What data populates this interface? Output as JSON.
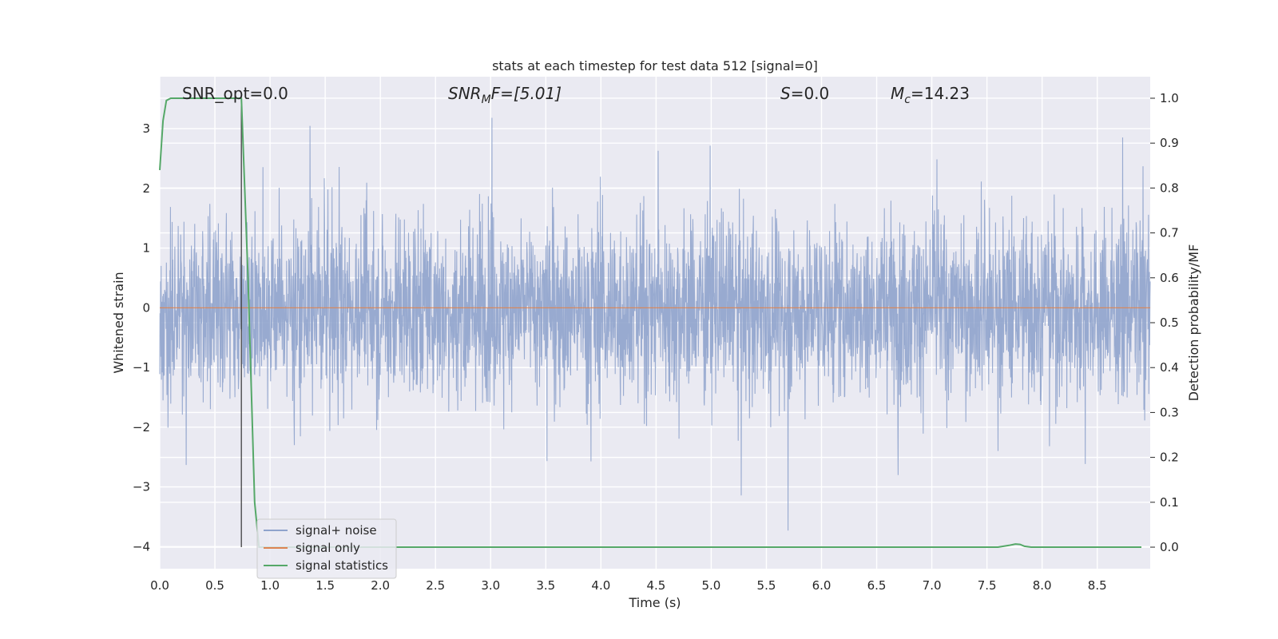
{
  "chart_data": {
    "type": "line",
    "title": "stats at each timestep for test data 512 [signal=0]",
    "xlabel": "Time (s)",
    "ylabel_left": "Whitened strain",
    "ylabel_right": "Detection probability/MF",
    "xlim": [
      0.0,
      8.98
    ],
    "ylim_left": [
      -4.37,
      3.87
    ],
    "ylim_right": [
      -0.048,
      1.048
    ],
    "x_ticks": [
      "0.0",
      "0.5",
      "1.0",
      "1.5",
      "2.0",
      "2.5",
      "3.0",
      "3.5",
      "4.0",
      "4.5",
      "5.0",
      "5.5",
      "6.0",
      "6.5",
      "7.0",
      "7.5",
      "8.0",
      "8.5"
    ],
    "y_left_ticks": [
      "3",
      "2",
      "1",
      "0",
      "−1",
      "−2",
      "−3",
      "−4"
    ],
    "y_right_ticks": [
      "1.0",
      "0.9",
      "0.8",
      "0.7",
      "0.6",
      "0.5",
      "0.4",
      "0.3",
      "0.2",
      "0.1",
      "0.0"
    ],
    "grid": true,
    "legend_position": "lower-left",
    "annotations": {
      "snr_opt": "SNR_opt=0.0",
      "snr_mf_symbol": "SNR",
      "snr_mf_sub": "M",
      "snr_mf_rest": "F=[5.01]",
      "s_symbol": "S",
      "s_rest": "=0.0",
      "mc_symbol": "M",
      "mc_sub": "c",
      "mc_rest": "=14.23"
    },
    "marker_line_x": 0.74,
    "series": [
      {
        "name": "signal+ noise",
        "color": "#8fa3cc",
        "description_values": {
          "approx_peak_max": 3.3,
          "approx_peak_min": -4.0,
          "typical_abs": 1.2
        }
      },
      {
        "name": "signal only",
        "color": "#dd8452",
        "values_constant": 0.0
      },
      {
        "name": "signal statistics",
        "color": "#55a868",
        "x": [
          0.0,
          0.03,
          0.06,
          0.1,
          0.3,
          0.5,
          0.7,
          0.74,
          0.8,
          0.86,
          0.9,
          1.0,
          2.0,
          3.0,
          4.0,
          5.0,
          6.0,
          7.0,
          7.6,
          7.7,
          7.76,
          7.8,
          7.84,
          7.9,
          8.0,
          8.3,
          8.5,
          8.9
        ],
        "y": [
          0.84,
          0.95,
          0.995,
          1.0,
          1.0,
          1.0,
          1.0,
          1.0,
          0.6,
          0.1,
          0.0,
          0.0,
          0.0,
          0.0,
          0.0,
          0.0,
          0.0,
          0.0,
          0.0,
          0.004,
          0.007,
          0.006,
          0.002,
          0.0,
          0.0,
          0.0,
          0.0,
          0.0
        ]
      }
    ]
  }
}
